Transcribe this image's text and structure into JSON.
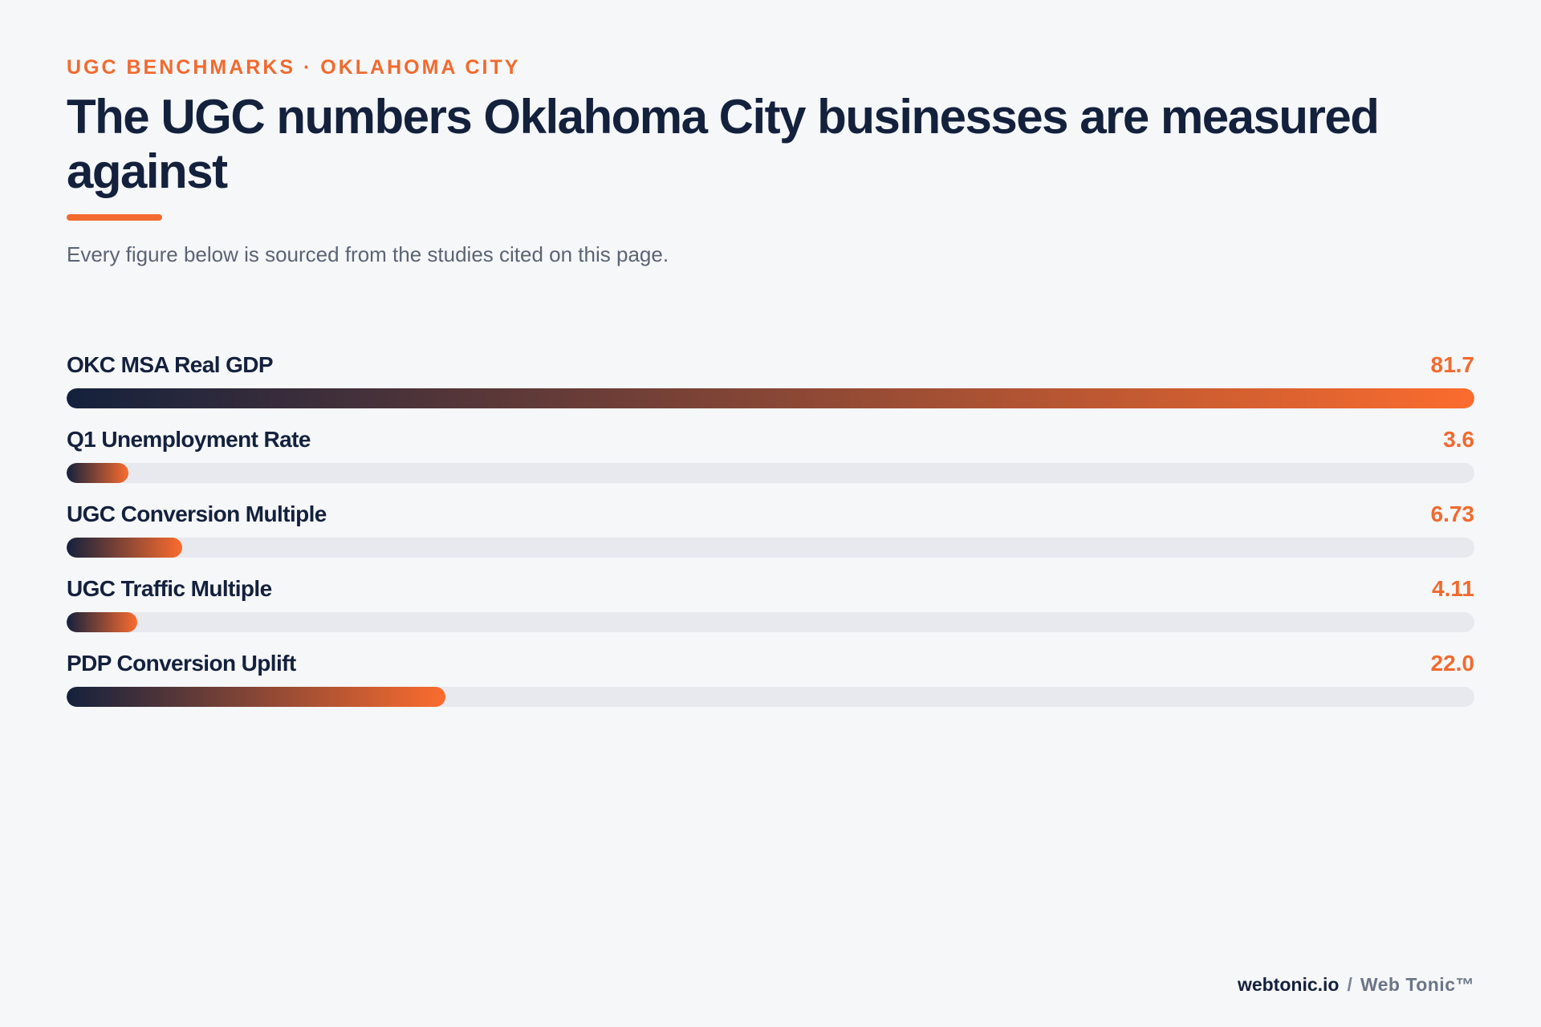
{
  "eyebrow": "UGC BENCHMARKS · OKLAHOMA CITY",
  "title": "The UGC numbers Oklahoma City businesses are measured against",
  "subtitle": "Every figure below is sourced from the studies cited on this page.",
  "colors": {
    "accent": "#f26a2e",
    "navy": "#14213d",
    "track": "#e7e9ef",
    "background": "#f6f7f9"
  },
  "chart_data": {
    "type": "bar",
    "orientation": "horizontal",
    "categories": [
      "OKC MSA Real GDP",
      "Q1 Unemployment Rate",
      "UGC Conversion Multiple",
      "UGC Traffic Multiple",
      "PDP Conversion Uplift"
    ],
    "value_labels": [
      "81.7",
      "3.6",
      "6.73",
      "4.11",
      "22.0"
    ],
    "values": [
      81.7,
      3.6,
      6.73,
      4.11,
      22.0
    ],
    "xlim": [
      0,
      81.7
    ],
    "grid": false,
    "legend": "none"
  },
  "footer": {
    "domain": "webtonic.io",
    "separator": "/",
    "brand": "Web Tonic™"
  }
}
